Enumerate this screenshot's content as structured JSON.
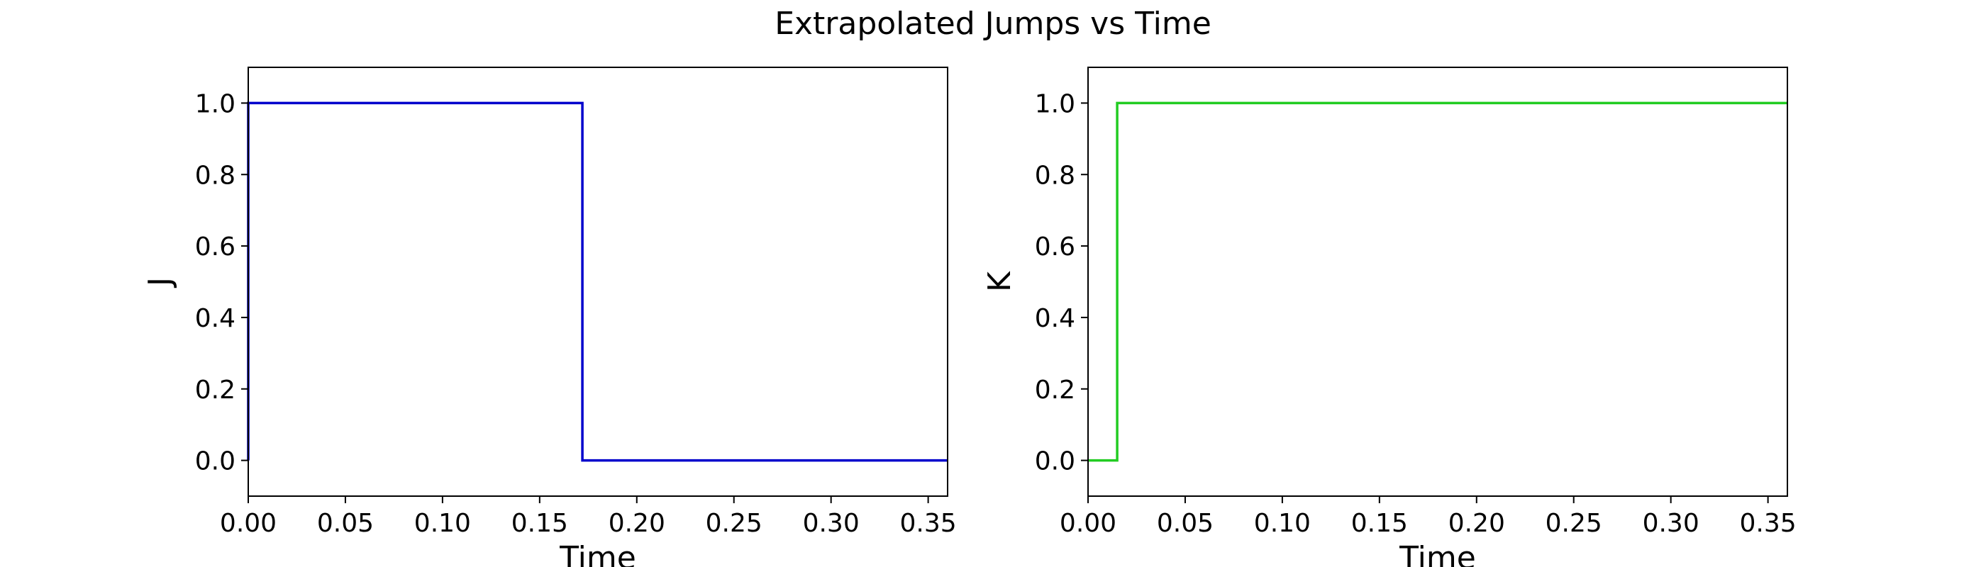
{
  "figure": {
    "title": "Extrapolated Jumps vs Time"
  },
  "chart_data": [
    {
      "type": "line",
      "step": true,
      "xlabel": "Time",
      "ylabel": "J",
      "xlim": [
        0.0,
        0.36
      ],
      "ylim": [
        -0.1,
        1.1
      ],
      "x_ticks": [
        0.0,
        0.05,
        0.1,
        0.15,
        0.2,
        0.25,
        0.3,
        0.35
      ],
      "x_tick_labels": [
        "0.00",
        "0.05",
        "0.10",
        "0.15",
        "0.20",
        "0.25",
        "0.30",
        "0.35"
      ],
      "y_ticks": [
        0.0,
        0.2,
        0.4,
        0.6,
        0.8,
        1.0
      ],
      "y_tick_labels": [
        "0.0",
        "0.2",
        "0.4",
        "0.6",
        "0.8",
        "1.0"
      ],
      "grid": false,
      "series": [
        {
          "color": "#0000cc",
          "x": [
            0.0,
            0.0,
            0.172,
            0.172,
            0.36
          ],
          "y": [
            0.0,
            1.0,
            1.0,
            0.0,
            0.0
          ]
        }
      ]
    },
    {
      "type": "line",
      "step": true,
      "xlabel": "Time",
      "ylabel": "K",
      "xlim": [
        0.0,
        0.36
      ],
      "ylim": [
        -0.1,
        1.1
      ],
      "x_ticks": [
        0.0,
        0.05,
        0.1,
        0.15,
        0.2,
        0.25,
        0.3,
        0.35
      ],
      "x_tick_labels": [
        "0.00",
        "0.05",
        "0.10",
        "0.15",
        "0.20",
        "0.25",
        "0.30",
        "0.35"
      ],
      "y_ticks": [
        0.0,
        0.2,
        0.4,
        0.6,
        0.8,
        1.0
      ],
      "y_tick_labels": [
        "0.0",
        "0.2",
        "0.4",
        "0.6",
        "0.8",
        "1.0"
      ],
      "grid": false,
      "series": [
        {
          "color": "#22cc22",
          "x": [
            0.0,
            0.015,
            0.015,
            0.36
          ],
          "y": [
            0.0,
            0.0,
            1.0,
            1.0
          ]
        }
      ]
    }
  ]
}
